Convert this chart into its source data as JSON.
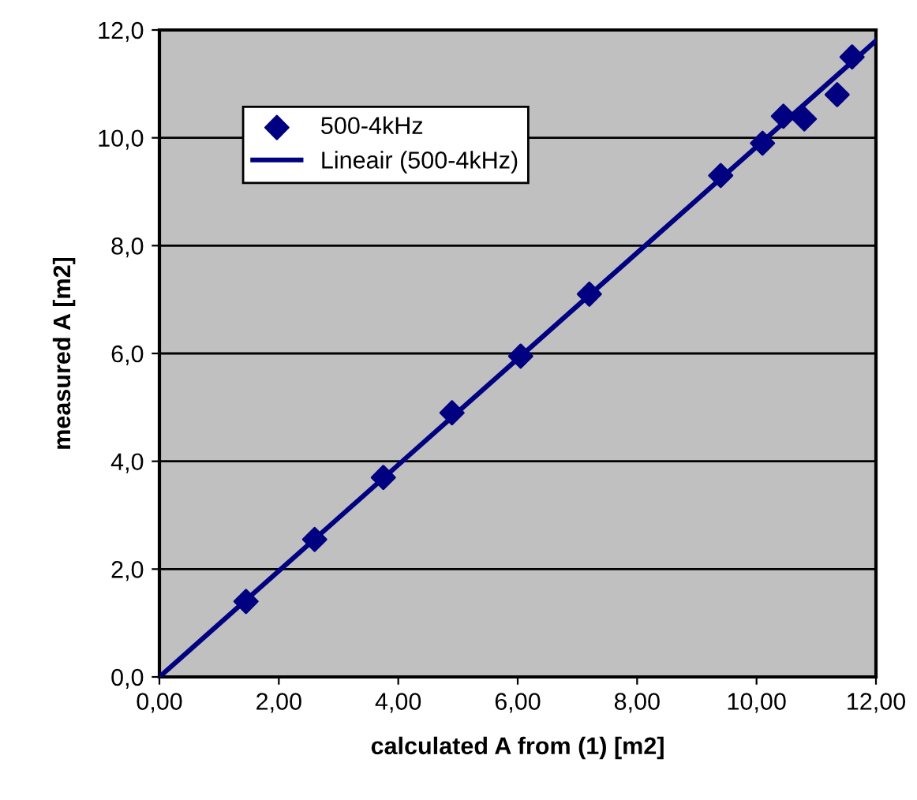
{
  "chart_data": {
    "type": "scatter",
    "xlabel": "calculated A from (1) [m2]",
    "ylabel": "measured A [m2]",
    "series": [
      {
        "name": "500-4kHz",
        "color": "#000080",
        "marker": "diamond",
        "x": [
          1.45,
          2.6,
          3.75,
          4.9,
          6.05,
          7.2,
          9.4,
          10.1,
          10.45,
          10.8,
          11.35,
          11.6
        ],
        "values": [
          1.4,
          2.55,
          3.7,
          4.9,
          5.95,
          7.1,
          9.3,
          9.9,
          10.4,
          10.35,
          10.8,
          11.5
        ]
      },
      {
        "name": "Lineair (500-4kHz)",
        "type": "line",
        "color": "#000080",
        "marker": "none",
        "line_style": "solid",
        "x": [
          0,
          12
        ],
        "values": [
          0,
          11.8
        ]
      }
    ],
    "xlim": [
      0,
      12
    ],
    "ylim": [
      0,
      12
    ],
    "xticks": [
      {
        "value": 0,
        "label": "0,00"
      },
      {
        "value": 2,
        "label": "2,00"
      },
      {
        "value": 4,
        "label": "4,00"
      },
      {
        "value": 6,
        "label": "6,00"
      },
      {
        "value": 8,
        "label": "8,00"
      },
      {
        "value": 10,
        "label": "10,00"
      },
      {
        "value": 12,
        "label": "12,00"
      }
    ],
    "yticks": [
      {
        "value": 0,
        "label": "0,0"
      },
      {
        "value": 2,
        "label": "2,0"
      },
      {
        "value": 4,
        "label": "4,0"
      },
      {
        "value": 6,
        "label": "6,0"
      },
      {
        "value": 8,
        "label": "8,0"
      },
      {
        "value": 10,
        "label": "10,0"
      },
      {
        "value": 12,
        "label": "12,0"
      }
    ],
    "grid": "y",
    "legend": "top left"
  }
}
